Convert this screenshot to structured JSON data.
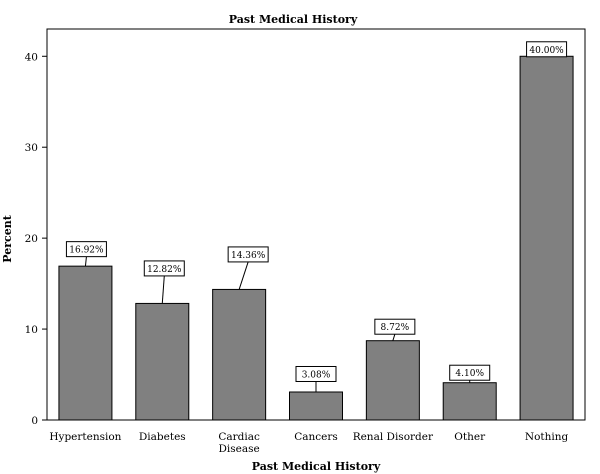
{
  "chart_data": {
    "type": "bar",
    "title": "Past Medical History",
    "xlabel": "Past Medical History",
    "ylabel": "Percent",
    "categories": [
      [
        "Hypertension"
      ],
      [
        "Diabetes"
      ],
      [
        "Cardiac",
        "Disease"
      ],
      [
        "Cancers"
      ],
      [
        "Renal Disorder"
      ],
      [
        "Other"
      ],
      [
        "Nothing"
      ]
    ],
    "values": [
      16.92,
      12.82,
      14.36,
      3.08,
      8.72,
      4.1,
      40.0
    ],
    "data_labels": [
      "16.92%",
      "12.82%",
      "14.36%",
      "3.08%",
      "8.72%",
      "4.10%",
      "40.00%"
    ],
    "ylim": [
      0,
      43
    ],
    "yticks": [
      0,
      10,
      20,
      30,
      40
    ],
    "grid": false,
    "legend": "none",
    "bar_color": "#808080",
    "bar_edge_color": "#000000"
  }
}
